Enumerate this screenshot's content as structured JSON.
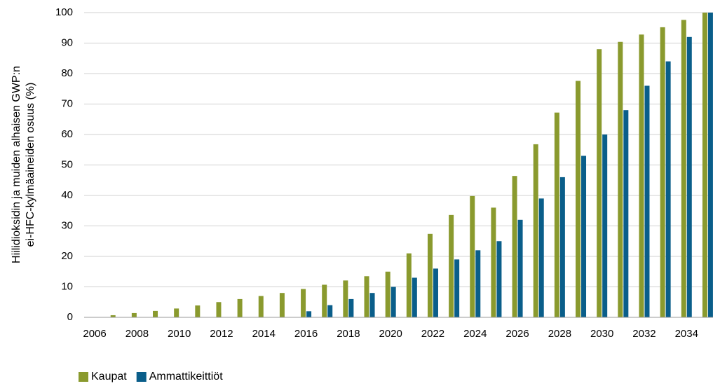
{
  "chart_data": {
    "type": "bar",
    "y_label": [
      "Hiilidioksidin ja muiden alhaisen GWP:n",
      "ei-HFC-kylmäaineiden osuus (%)"
    ],
    "categories": [
      "2006",
      null,
      "2008",
      null,
      "2010",
      null,
      "2012",
      null,
      "2014",
      null,
      "2016",
      null,
      "2018",
      null,
      "2020",
      null,
      "2022",
      null,
      "2024",
      null,
      "2026",
      null,
      "2028",
      null,
      "2030",
      null,
      "2032",
      null,
      "2034",
      null
    ],
    "series": [
      {
        "name": "Kaupat",
        "color": "#8a9a2e",
        "values": [
          0,
          0.7,
          1.4,
          2.1,
          2.9,
          3.9,
          5,
          6,
          7,
          8,
          9.3,
          10.7,
          12.1,
          13.5,
          15,
          21,
          27.4,
          33.6,
          39.8,
          36,
          46.4,
          56.8,
          67.2,
          77.6,
          88,
          90.4,
          92.8,
          95.2,
          97.6,
          100
        ]
      },
      {
        "name": "Ammattikeittiöt",
        "color": "#0a5e8a",
        "values": [
          0,
          0,
          0,
          0,
          0,
          0,
          0,
          0,
          0,
          0,
          2,
          4,
          6,
          8,
          10,
          13,
          16,
          19,
          22,
          25,
          32,
          39,
          46,
          53,
          60,
          68,
          76,
          84,
          92,
          100
        ]
      }
    ],
    "ylim": [
      0,
      100
    ],
    "yticks": [
      0,
      10,
      20,
      30,
      40,
      50,
      60,
      70,
      80,
      90,
      100
    ],
    "grid": true,
    "legend": "bottom-left"
  }
}
